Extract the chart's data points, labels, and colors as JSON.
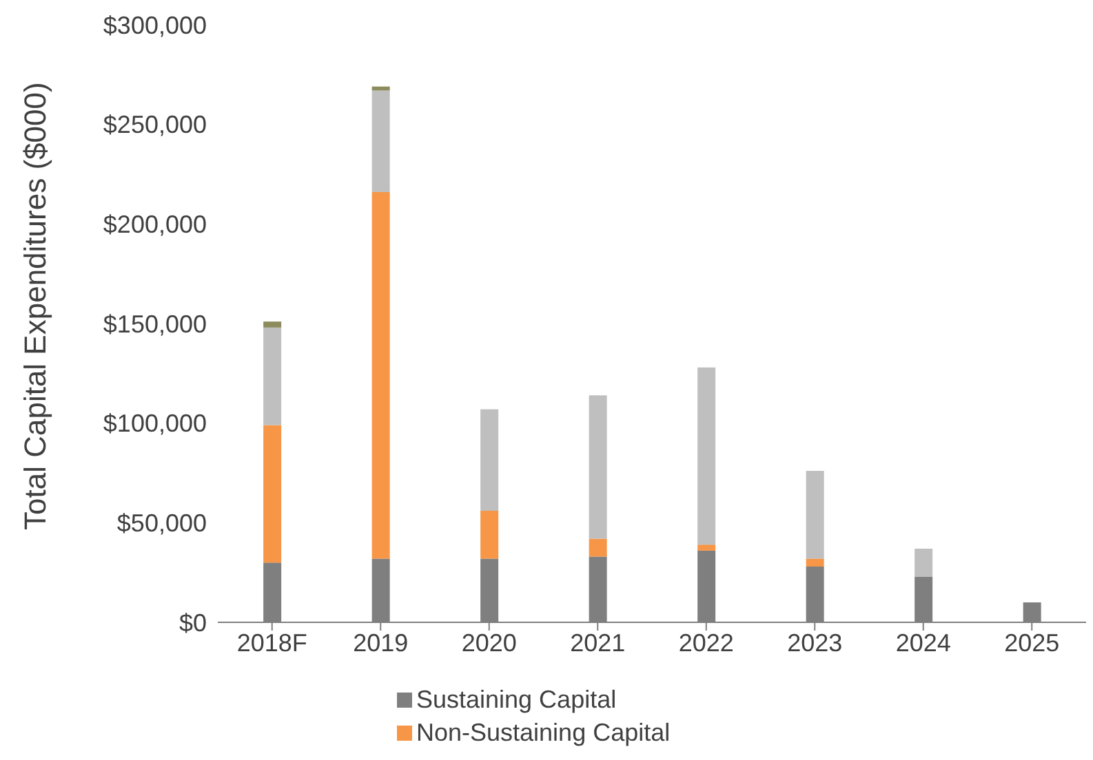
{
  "chart_data": {
    "type": "bar",
    "stacked": true,
    "ylabel": "Total Capital Expenditures ($000)",
    "categories": [
      "2018F",
      "2019",
      "2020",
      "2021",
      "2022",
      "2023",
      "2024",
      "2025"
    ],
    "series": [
      {
        "name": "Sustaining Capital",
        "color": "#7f7f7f",
        "values": [
          30000,
          32000,
          32000,
          33000,
          36000,
          28000,
          23000,
          10000
        ]
      },
      {
        "name": "Non-Sustaining Capital",
        "color": "#f79646",
        "values": [
          69000,
          184000,
          24000,
          9000,
          3000,
          4000,
          null,
          null
        ]
      },
      {
        "color": "#bfbfbf",
        "values": [
          49000,
          51000,
          51000,
          72000,
          89000,
          44000,
          14000,
          null
        ]
      },
      {
        "color": "#8c8c5e",
        "values": [
          3000,
          2000,
          null,
          null,
          null,
          null,
          null,
          null
        ]
      }
    ],
    "ylim": [
      0,
      300000
    ],
    "yticks": [
      {
        "value": 0,
        "label": "$0"
      },
      {
        "value": 50000,
        "label": "$50,000"
      },
      {
        "value": 100000,
        "label": "$100,000"
      },
      {
        "value": 150000,
        "label": "$150,000"
      },
      {
        "value": 200000,
        "label": "$200,000"
      },
      {
        "value": 250000,
        "label": "$250,000"
      },
      {
        "value": 300000,
        "label": "$300,000"
      }
    ],
    "grid": false,
    "legend": "bottom"
  }
}
